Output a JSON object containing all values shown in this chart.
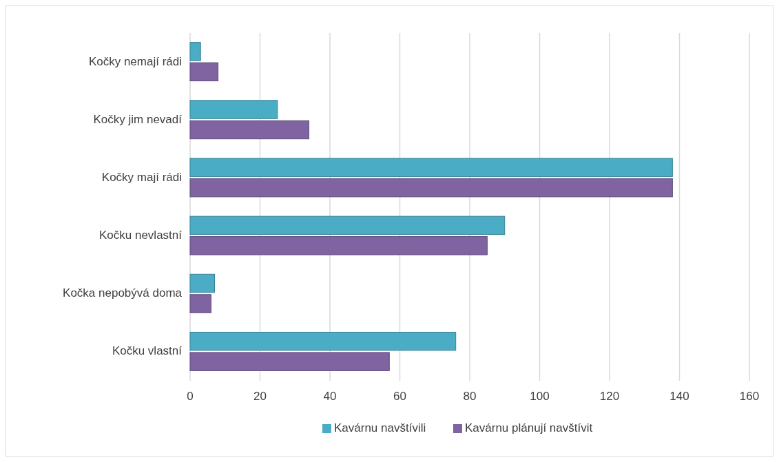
{
  "chart_data": {
    "type": "bar",
    "orientation": "horizontal",
    "categories": [
      "Kočky nemají rádi",
      "Kočky jim nevadí",
      "Kočky mají rádi",
      "Kočku nevlastní",
      "Kočka nepobývá doma",
      "Kočku vlastní"
    ],
    "series": [
      {
        "name": "Kavárnu navštívili",
        "color": "#4bacc6",
        "values": [
          3,
          25,
          138,
          90,
          7,
          76
        ]
      },
      {
        "name": "Kavárnu plánují navštívit",
        "color": "#8064a2",
        "values": [
          8,
          34,
          138,
          85,
          6,
          57
        ]
      }
    ],
    "xlim": [
      0,
      160
    ],
    "xticks": [
      0,
      20,
      40,
      60,
      80,
      100,
      120,
      140,
      160
    ],
    "grid": "x",
    "legend": "bottom"
  }
}
